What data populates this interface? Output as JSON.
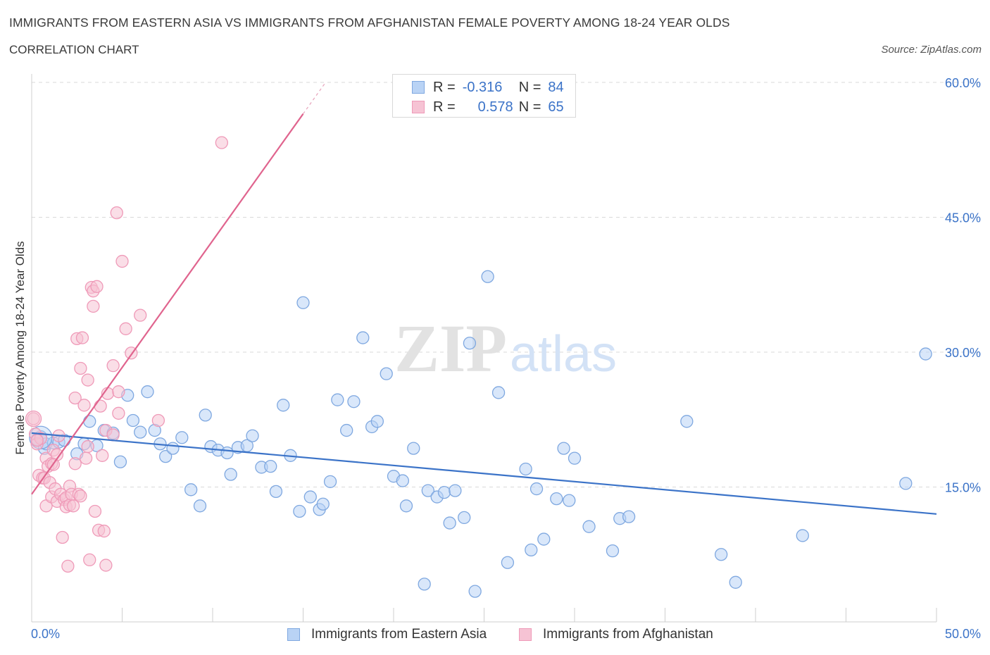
{
  "title": "IMMIGRANTS FROM EASTERN ASIA VS IMMIGRANTS FROM AFGHANISTAN FEMALE POVERTY AMONG 18-24 YEAR OLDS",
  "subtitle": "CORRELATION CHART",
  "source": "Source: ZipAtlas.com",
  "watermark": {
    "zip": "ZIP",
    "atlas": "atlas"
  },
  "colors": {
    "blue": "#3b73c8",
    "blue_fill": "#b9d3f5",
    "blue_stroke": "#7fa8e0",
    "pink": "#e0648e",
    "pink_fill": "#f6c3d4",
    "pink_stroke": "#ef9ab8",
    "grid": "#d9d9d9"
  },
  "legend": {
    "r_label": "R =",
    "n_label": "N =",
    "series1": {
      "r": "-0.316",
      "n": "84"
    },
    "series2": {
      "r": "0.578",
      "n": "65"
    }
  },
  "chart_data": {
    "type": "scatter",
    "xlabel": "",
    "ylabel": "Female Poverty Among 18-24 Year Olds",
    "xlim": [
      0,
      50
    ],
    "ylim": [
      0,
      60
    ],
    "x_tick_labels": [
      "0.0%",
      "50.0%"
    ],
    "y_tick_labels": [
      "15.0%",
      "30.0%",
      "45.0%",
      "60.0%"
    ],
    "y_ticks": [
      15,
      30,
      45,
      60
    ],
    "grid": "horizontal dashed",
    "legend_position": "top-center and bottom",
    "series": [
      {
        "name": "Immigrants from Eastern Asia",
        "color": "#3b73c8",
        "trend": {
          "x": [
            0,
            50
          ],
          "y": [
            21.0,
            12.0
          ]
        },
        "points": [
          [
            0.3,
            20.3
          ],
          [
            0.5,
            20.6
          ],
          [
            0.7,
            19.3
          ],
          [
            0.8,
            19.8
          ],
          [
            1.2,
            19.9
          ],
          [
            1.5,
            20.0
          ],
          [
            1.8,
            20.2
          ],
          [
            2.5,
            18.7
          ],
          [
            2.9,
            19.8
          ],
          [
            3.2,
            22.3
          ],
          [
            3.6,
            19.6
          ],
          [
            4.0,
            21.3
          ],
          [
            4.5,
            21.0
          ],
          [
            4.9,
            17.8
          ],
          [
            5.3,
            25.2
          ],
          [
            5.6,
            22.4
          ],
          [
            6.0,
            21.1
          ],
          [
            6.4,
            25.6
          ],
          [
            6.8,
            21.3
          ],
          [
            7.1,
            19.8
          ],
          [
            7.4,
            18.4
          ],
          [
            7.8,
            19.3
          ],
          [
            8.3,
            20.5
          ],
          [
            8.8,
            14.7
          ],
          [
            9.3,
            12.9
          ],
          [
            9.6,
            23.0
          ],
          [
            9.9,
            19.5
          ],
          [
            10.3,
            19.1
          ],
          [
            10.8,
            18.8
          ],
          [
            11.0,
            16.4
          ],
          [
            11.4,
            19.4
          ],
          [
            11.9,
            19.6
          ],
          [
            12.2,
            20.7
          ],
          [
            12.7,
            17.2
          ],
          [
            13.2,
            17.3
          ],
          [
            13.5,
            14.5
          ],
          [
            13.9,
            24.1
          ],
          [
            14.3,
            18.5
          ],
          [
            14.8,
            12.3
          ],
          [
            15.0,
            35.5
          ],
          [
            15.4,
            13.9
          ],
          [
            15.9,
            12.5
          ],
          [
            16.1,
            13.1
          ],
          [
            16.5,
            15.6
          ],
          [
            16.9,
            24.7
          ],
          [
            17.4,
            21.3
          ],
          [
            17.8,
            24.5
          ],
          [
            18.3,
            31.6
          ],
          [
            18.8,
            21.7
          ],
          [
            19.1,
            22.3
          ],
          [
            19.6,
            27.6
          ],
          [
            20.0,
            16.2
          ],
          [
            20.5,
            15.7
          ],
          [
            20.7,
            12.9
          ],
          [
            21.1,
            19.3
          ],
          [
            21.7,
            4.2
          ],
          [
            21.9,
            14.6
          ],
          [
            22.4,
            13.9
          ],
          [
            22.8,
            14.4
          ],
          [
            23.1,
            11.0
          ],
          [
            23.4,
            14.6
          ],
          [
            23.9,
            11.6
          ],
          [
            24.2,
            31.0
          ],
          [
            24.5,
            3.4
          ],
          [
            25.2,
            38.4
          ],
          [
            25.8,
            25.5
          ],
          [
            26.3,
            6.6
          ],
          [
            27.3,
            17.0
          ],
          [
            27.6,
            8.0
          ],
          [
            27.9,
            14.8
          ],
          [
            28.3,
            9.2
          ],
          [
            29.0,
            13.7
          ],
          [
            29.4,
            19.3
          ],
          [
            29.7,
            13.5
          ],
          [
            30.0,
            18.2
          ],
          [
            30.8,
            10.6
          ],
          [
            32.1,
            7.9
          ],
          [
            32.5,
            11.5
          ],
          [
            33.0,
            11.7
          ],
          [
            36.2,
            22.3
          ],
          [
            38.1,
            7.5
          ],
          [
            38.9,
            4.4
          ],
          [
            42.6,
            9.6
          ],
          [
            48.3,
            15.4
          ],
          [
            49.4,
            29.8
          ]
        ]
      },
      {
        "name": "Immigrants from Afghanistan",
        "color": "#e0648e",
        "trend": {
          "x": [
            0,
            15.0
          ],
          "y": [
            14.2,
            56.5
          ]
        },
        "points": [
          [
            0.1,
            22.6
          ],
          [
            0.2,
            20.9
          ],
          [
            0.3,
            19.8
          ],
          [
            0.4,
            16.3
          ],
          [
            0.5,
            20.4
          ],
          [
            0.6,
            16.0
          ],
          [
            0.7,
            16.0
          ],
          [
            0.8,
            12.9
          ],
          [
            0.8,
            18.2
          ],
          [
            0.9,
            17.3
          ],
          [
            1.0,
            15.5
          ],
          [
            1.1,
            17.6
          ],
          [
            1.1,
            13.9
          ],
          [
            1.2,
            19.1
          ],
          [
            1.3,
            14.8
          ],
          [
            1.4,
            18.6
          ],
          [
            1.4,
            13.4
          ],
          [
            1.5,
            20.7
          ],
          [
            1.6,
            14.2
          ],
          [
            1.7,
            9.4
          ],
          [
            1.8,
            13.6
          ],
          [
            1.9,
            13.8
          ],
          [
            1.9,
            12.8
          ],
          [
            2.0,
            6.2
          ],
          [
            2.1,
            13.0
          ],
          [
            2.1,
            15.1
          ],
          [
            2.2,
            14.2
          ],
          [
            2.3,
            12.9
          ],
          [
            2.4,
            24.9
          ],
          [
            2.4,
            17.6
          ],
          [
            2.5,
            31.5
          ],
          [
            2.6,
            14.2
          ],
          [
            2.7,
            28.2
          ],
          [
            2.8,
            31.6
          ],
          [
            2.9,
            24.1
          ],
          [
            3.0,
            18.2
          ],
          [
            3.1,
            26.9
          ],
          [
            3.2,
            6.9
          ],
          [
            3.3,
            37.2
          ],
          [
            3.4,
            36.8
          ],
          [
            3.4,
            35.1
          ],
          [
            3.5,
            12.3
          ],
          [
            3.6,
            37.3
          ],
          [
            3.7,
            10.2
          ],
          [
            3.8,
            24.0
          ],
          [
            3.9,
            18.5
          ],
          [
            4.0,
            10.1
          ],
          [
            4.1,
            6.3
          ],
          [
            4.1,
            21.3
          ],
          [
            4.2,
            25.4
          ],
          [
            4.5,
            20.8
          ],
          [
            4.5,
            28.5
          ],
          [
            4.8,
            25.6
          ],
          [
            4.8,
            23.2
          ],
          [
            4.7,
            45.5
          ],
          [
            5.0,
            40.1
          ],
          [
            5.2,
            32.6
          ],
          [
            5.5,
            29.9
          ],
          [
            6.0,
            34.1
          ],
          [
            7.0,
            22.4
          ],
          [
            10.5,
            53.3
          ],
          [
            0.3,
            20.2
          ],
          [
            1.2,
            17.5
          ],
          [
            2.7,
            14.0
          ],
          [
            3.1,
            19.5
          ]
        ]
      }
    ]
  }
}
